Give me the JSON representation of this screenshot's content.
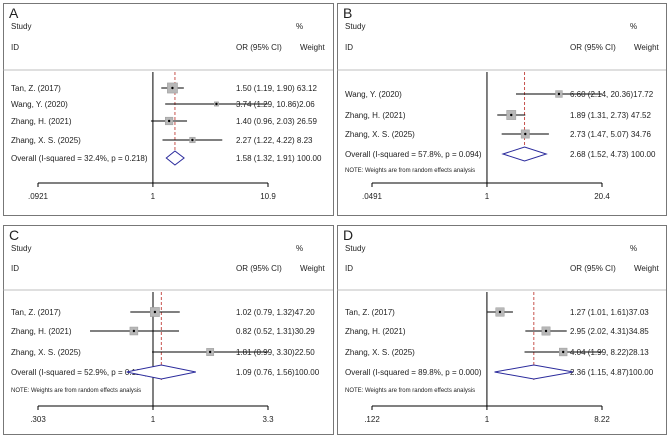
{
  "chart_data": [
    {
      "type": "forest",
      "panel_label": "A",
      "header": {
        "study": "Study",
        "id": "ID",
        "pct": "%",
        "or": "OR (95% CI)",
        "weight": "Weight"
      },
      "x_ticks": [
        {
          "value": 0.0921,
          "label": ".0921"
        },
        {
          "value": 1,
          "label": "1"
        },
        {
          "value": 10.9,
          "label": "10.9"
        }
      ],
      "xlim": [
        0.0921,
        10.9
      ],
      "log_scale": true,
      "overall_line": 1.58,
      "studies": [
        {
          "name": "Tan, Z. (2017)",
          "or": 1.5,
          "lo": 1.19,
          "hi": 1.9,
          "weight": 63.12,
          "text": "1.50 (1.19, 1.90) 63.12"
        },
        {
          "name": "Wang, Y. (2020)",
          "or": 3.74,
          "lo": 1.29,
          "hi": 10.86,
          "weight": 2.06,
          "text": "3.74 (1.29, 10.86)2.06"
        },
        {
          "name": "Zhang, H. (2021)",
          "or": 1.4,
          "lo": 0.96,
          "hi": 2.03,
          "weight": 26.59,
          "text": "1.40 (0.96, 2.03) 26.59"
        },
        {
          "name": "Zhang, X. S. (2025)",
          "or": 2.27,
          "lo": 1.22,
          "hi": 4.22,
          "weight": 8.23,
          "text": "2.27 (1.22, 4.22) 8.23"
        }
      ],
      "overall": {
        "name": "Overall  (I-squared = 32.4%, p = 0.218)",
        "or": 1.58,
        "lo": 1.32,
        "hi": 1.91,
        "text": "1.58 (1.32, 1.91) 100.00"
      },
      "note": ""
    },
    {
      "type": "forest",
      "panel_label": "B",
      "header": {
        "study": "Study",
        "id": "ID",
        "pct": "%",
        "or": "OR (95% CI)",
        "weight": "Weight"
      },
      "x_ticks": [
        {
          "value": 0.0491,
          "label": ".0491"
        },
        {
          "value": 1,
          "label": "1"
        },
        {
          "value": 20.4,
          "label": "20.4"
        }
      ],
      "xlim": [
        0.0491,
        20.4
      ],
      "log_scale": true,
      "overall_line": 2.68,
      "studies": [
        {
          "name": "Wang, Y. (2020)",
          "or": 6.6,
          "lo": 2.14,
          "hi": 20.36,
          "weight": 17.72,
          "text": "6.60 (2.14, 20.36)17.72"
        },
        {
          "name": "Zhang, H. (2021)",
          "or": 1.89,
          "lo": 1.31,
          "hi": 2.73,
          "weight": 47.52,
          "text": "1.89 (1.31, 2.73) 47.52"
        },
        {
          "name": "Zhang, X. S. (2025)",
          "or": 2.73,
          "lo": 1.47,
          "hi": 5.07,
          "weight": 34.76,
          "text": "2.73 (1.47, 5.07) 34.76"
        }
      ],
      "overall": {
        "name": "Overall  (I-squared = 57.8%, p = 0.094)",
        "or": 2.68,
        "lo": 1.52,
        "hi": 4.73,
        "text": "2.68 (1.52, 4.73) 100.00"
      },
      "note": "NOTE: Weights are from random effects analysis"
    },
    {
      "type": "forest",
      "panel_label": "C",
      "header": {
        "study": "Study",
        "id": "ID",
        "pct": "%",
        "or": "OR (95% CI)",
        "weight": "Weight"
      },
      "x_ticks": [
        {
          "value": 0.303,
          "label": ".303"
        },
        {
          "value": 1,
          "label": "1"
        },
        {
          "value": 3.3,
          "label": "3.3"
        }
      ],
      "xlim": [
        0.303,
        3.3
      ],
      "log_scale": true,
      "overall_line": 1.09,
      "studies": [
        {
          "name": "Tan, Z. (2017)",
          "or": 1.02,
          "lo": 0.79,
          "hi": 1.32,
          "weight": 47.2,
          "text": "1.02 (0.79, 1.32)47.20"
        },
        {
          "name": "Zhang, H. (2021)",
          "or": 0.82,
          "lo": 0.52,
          "hi": 1.31,
          "weight": 30.29,
          "text": "0.82 (0.52, 1.31)30.29"
        },
        {
          "name": "Zhang, X. S. (2025)",
          "or": 1.81,
          "lo": 0.99,
          "hi": 3.3,
          "weight": 22.5,
          "text": "1.81 (0.99, 3.30)22.50"
        }
      ],
      "overall": {
        "name": "Overall  (I-squared = 52.9%, p = 0.120)",
        "or": 1.09,
        "lo": 0.76,
        "hi": 1.56,
        "text": "1.09 (0.76, 1.56)100.00"
      },
      "note": "NOTE: Weights are from random effects analysis"
    },
    {
      "type": "forest",
      "panel_label": "D",
      "header": {
        "study": "Study",
        "id": "ID",
        "pct": "%",
        "or": "OR (95% CI)",
        "weight": "Weight"
      },
      "x_ticks": [
        {
          "value": 0.122,
          "label": ".122"
        },
        {
          "value": 1,
          "label": "1"
        },
        {
          "value": 8.22,
          "label": "8.22"
        }
      ],
      "xlim": [
        0.122,
        8.22
      ],
      "log_scale": true,
      "overall_line": 2.36,
      "studies": [
        {
          "name": "Tan, Z. (2017)",
          "or": 1.27,
          "lo": 1.01,
          "hi": 1.61,
          "weight": 37.03,
          "text": "1.27 (1.01, 1.61)37.03"
        },
        {
          "name": "Zhang, H. (2021)",
          "or": 2.95,
          "lo": 2.02,
          "hi": 4.31,
          "weight": 34.85,
          "text": "2.95 (2.02, 4.31)34.85"
        },
        {
          "name": "Zhang, X. S. (2025)",
          "or": 4.04,
          "lo": 1.99,
          "hi": 8.22,
          "weight": 28.13,
          "text": "4.04 (1.99, 8.22)28.13"
        }
      ],
      "overall": {
        "name": "Overall  (I-squared = 89.8%, p = 0.000)",
        "or": 2.36,
        "lo": 1.15,
        "hi": 4.87,
        "text": "2.36 (1.15, 4.87)100.00"
      },
      "note": "NOTE: Weights are from random effects analysis"
    }
  ]
}
